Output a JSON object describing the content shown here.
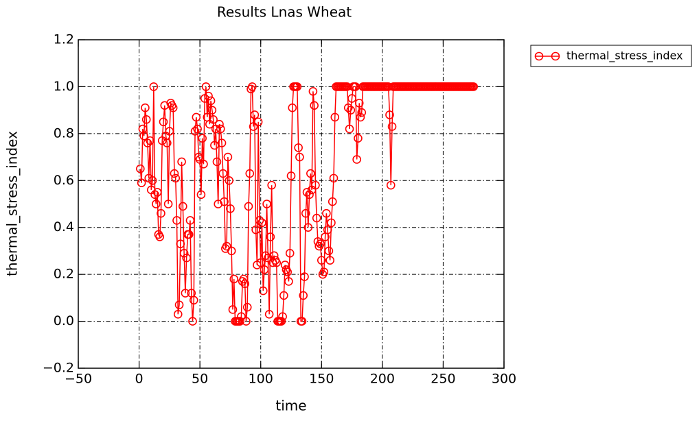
{
  "chart_data": {
    "type": "line",
    "title": "Results Lnas Wheat",
    "x_label": "time",
    "y_label": "thermal_stress_index",
    "xlim": [
      -50,
      300
    ],
    "ylim": [
      -0.2,
      1.2
    ],
    "xticks": [
      {
        "value": -50,
        "label": "−50"
      },
      0,
      50,
      100,
      150,
      200,
      250,
      300
    ],
    "yticks": [
      {
        "value": -0.2,
        "label": "−0.2"
      },
      {
        "value": 0,
        "label": "0.0"
      },
      0.2,
      0.4,
      0.6,
      0.8,
      {
        "value": 1,
        "label": "1.0"
      },
      1.2
    ],
    "grid": true,
    "legend": "outside-upper-right",
    "x": [
      1,
      2,
      3,
      4,
      5,
      6,
      7,
      8,
      9,
      10,
      11,
      12,
      13,
      14,
      15,
      16,
      17,
      18,
      19,
      20,
      21,
      22,
      23,
      24,
      25,
      26,
      27,
      28,
      29,
      30,
      31,
      32,
      33,
      34,
      35,
      36,
      37,
      38,
      39,
      40,
      41,
      42,
      43,
      44,
      45,
      46,
      47,
      48,
      49,
      50,
      51,
      52,
      53,
      54,
      55,
      56,
      57,
      58,
      59,
      60,
      61,
      62,
      63,
      64,
      65,
      66,
      67,
      68,
      69,
      70,
      71,
      72,
      73,
      74,
      75,
      76,
      77,
      78,
      79,
      80,
      81,
      82,
      83,
      84,
      85,
      86,
      87,
      88,
      89,
      90,
      91,
      92,
      93,
      94,
      95,
      96,
      97,
      98,
      99,
      100,
      101,
      102,
      103,
      104,
      105,
      106,
      107,
      108,
      109,
      110,
      111,
      112,
      113,
      114,
      115,
      116,
      117,
      118,
      119,
      120,
      121,
      122,
      123,
      124,
      125,
      126,
      127,
      128,
      129,
      130,
      131,
      132,
      133,
      134,
      135,
      136,
      137,
      138,
      139,
      140,
      141,
      142,
      143,
      144,
      145,
      146,
      147,
      148,
      149,
      150,
      151,
      152,
      153,
      154,
      155,
      156,
      157,
      158,
      159,
      160,
      161,
      162,
      163,
      164,
      165,
      166,
      167,
      168,
      169,
      170,
      171,
      172,
      173,
      174,
      175,
      176,
      177,
      178,
      179,
      180,
      181,
      182,
      183,
      184,
      185,
      186,
      187,
      188,
      189,
      190,
      191,
      192,
      193,
      194,
      195,
      196,
      197,
      198,
      199,
      200,
      201,
      202,
      203,
      204,
      205,
      206,
      207,
      208,
      209,
      210,
      211,
      212,
      213,
      214,
      215,
      216,
      217,
      218,
      219,
      220,
      221,
      222,
      223,
      224,
      225,
      226,
      227,
      228,
      229,
      230,
      231,
      232,
      233,
      234,
      235,
      236,
      237,
      238,
      239,
      240,
      241,
      242,
      243,
      244,
      245,
      246,
      247,
      248,
      249,
      250,
      251,
      252,
      253,
      254,
      255,
      256,
      257,
      258,
      259,
      260,
      261,
      262,
      263,
      264,
      265,
      266,
      267,
      268,
      269,
      270,
      271,
      272,
      273,
      274,
      275
    ],
    "series": [
      {
        "name": "thermal_stress_index",
        "color": "#ff0000",
        "values": [
          0.65,
          0.59,
          0.82,
          0.79,
          0.91,
          0.86,
          0.76,
          0.61,
          0.77,
          0.56,
          0.6,
          1,
          0.54,
          0.5,
          0.55,
          0.37,
          0.36,
          0.46,
          0.77,
          0.85,
          0.92,
          0.79,
          0.76,
          0.5,
          0.81,
          0.93,
          0.92,
          0.91,
          0.63,
          0.61,
          0.43,
          0.03,
          0.07,
          0.33,
          0.68,
          0.49,
          0.29,
          0.12,
          0.27,
          0.37,
          0.37,
          0.43,
          0.12,
          0,
          0.09,
          0.81,
          0.87,
          0.82,
          0.7,
          0.69,
          0.54,
          0.78,
          0.67,
          0.95,
          1,
          0.87,
          0.96,
          0.84,
          0.94,
          0.9,
          0.86,
          0.75,
          0.82,
          0.68,
          0.5,
          0.84,
          0.82,
          0.76,
          0.63,
          0.51,
          0.31,
          0.32,
          0.7,
          0.6,
          0.48,
          0.3,
          0.05,
          0.18,
          0,
          0,
          0,
          0,
          0,
          0.02,
          0.17,
          0.18,
          0.16,
          0,
          0.06,
          0.49,
          0.63,
          0.99,
          1,
          0.83,
          0.88,
          0.39,
          0.24,
          0.85,
          0.43,
          0.25,
          0.42,
          0.13,
          0.22,
          0.28,
          0.5,
          0.27,
          0.03,
          0.36,
          0.58,
          0.25,
          0.28,
          0.26,
          0.25,
          0,
          0,
          0,
          0,
          0.02,
          0.11,
          0.24,
          0.22,
          0.21,
          0.17,
          0.29,
          0.62,
          0.91,
          1,
          1,
          1,
          1,
          0.74,
          0.7,
          0,
          0,
          0.11,
          0.19,
          0.46,
          0.55,
          0.4,
          0.54,
          0.63,
          0.56,
          0.98,
          0.92,
          0.58,
          0.44,
          0.34,
          0.32,
          0.33,
          0.26,
          0.2,
          0.21,
          0.36,
          0.46,
          0.39,
          0.3,
          0.26,
          0.42,
          0.51,
          0.61,
          0.87,
          1,
          1,
          1,
          1,
          1,
          1,
          1,
          1,
          1,
          1,
          0.91,
          0.82,
          0.9,
          0.95,
          1,
          1,
          1,
          0.69,
          0.78,
          0.93,
          0.87,
          0.89,
          1,
          1,
          1,
          1,
          1,
          1,
          1,
          1,
          1,
          1,
          1,
          1,
          1,
          1,
          1,
          1,
          1,
          1,
          1,
          1,
          1,
          1,
          0.88,
          0.58,
          0.83,
          1,
          1,
          1,
          1,
          1,
          1,
          1,
          1,
          1,
          1,
          1,
          1,
          1,
          1,
          1,
          1,
          1,
          1,
          1,
          1,
          1,
          1,
          1,
          1,
          1,
          1,
          1,
          1,
          1,
          1,
          1,
          1,
          1,
          1,
          1,
          1,
          1,
          1,
          1,
          1,
          1,
          1,
          1,
          1,
          1,
          1,
          1,
          1,
          1,
          1,
          1,
          1,
          1,
          1,
          1,
          1,
          1,
          1,
          1,
          1,
          1,
          1,
          1,
          1,
          1,
          1,
          1
        ]
      }
    ]
  }
}
